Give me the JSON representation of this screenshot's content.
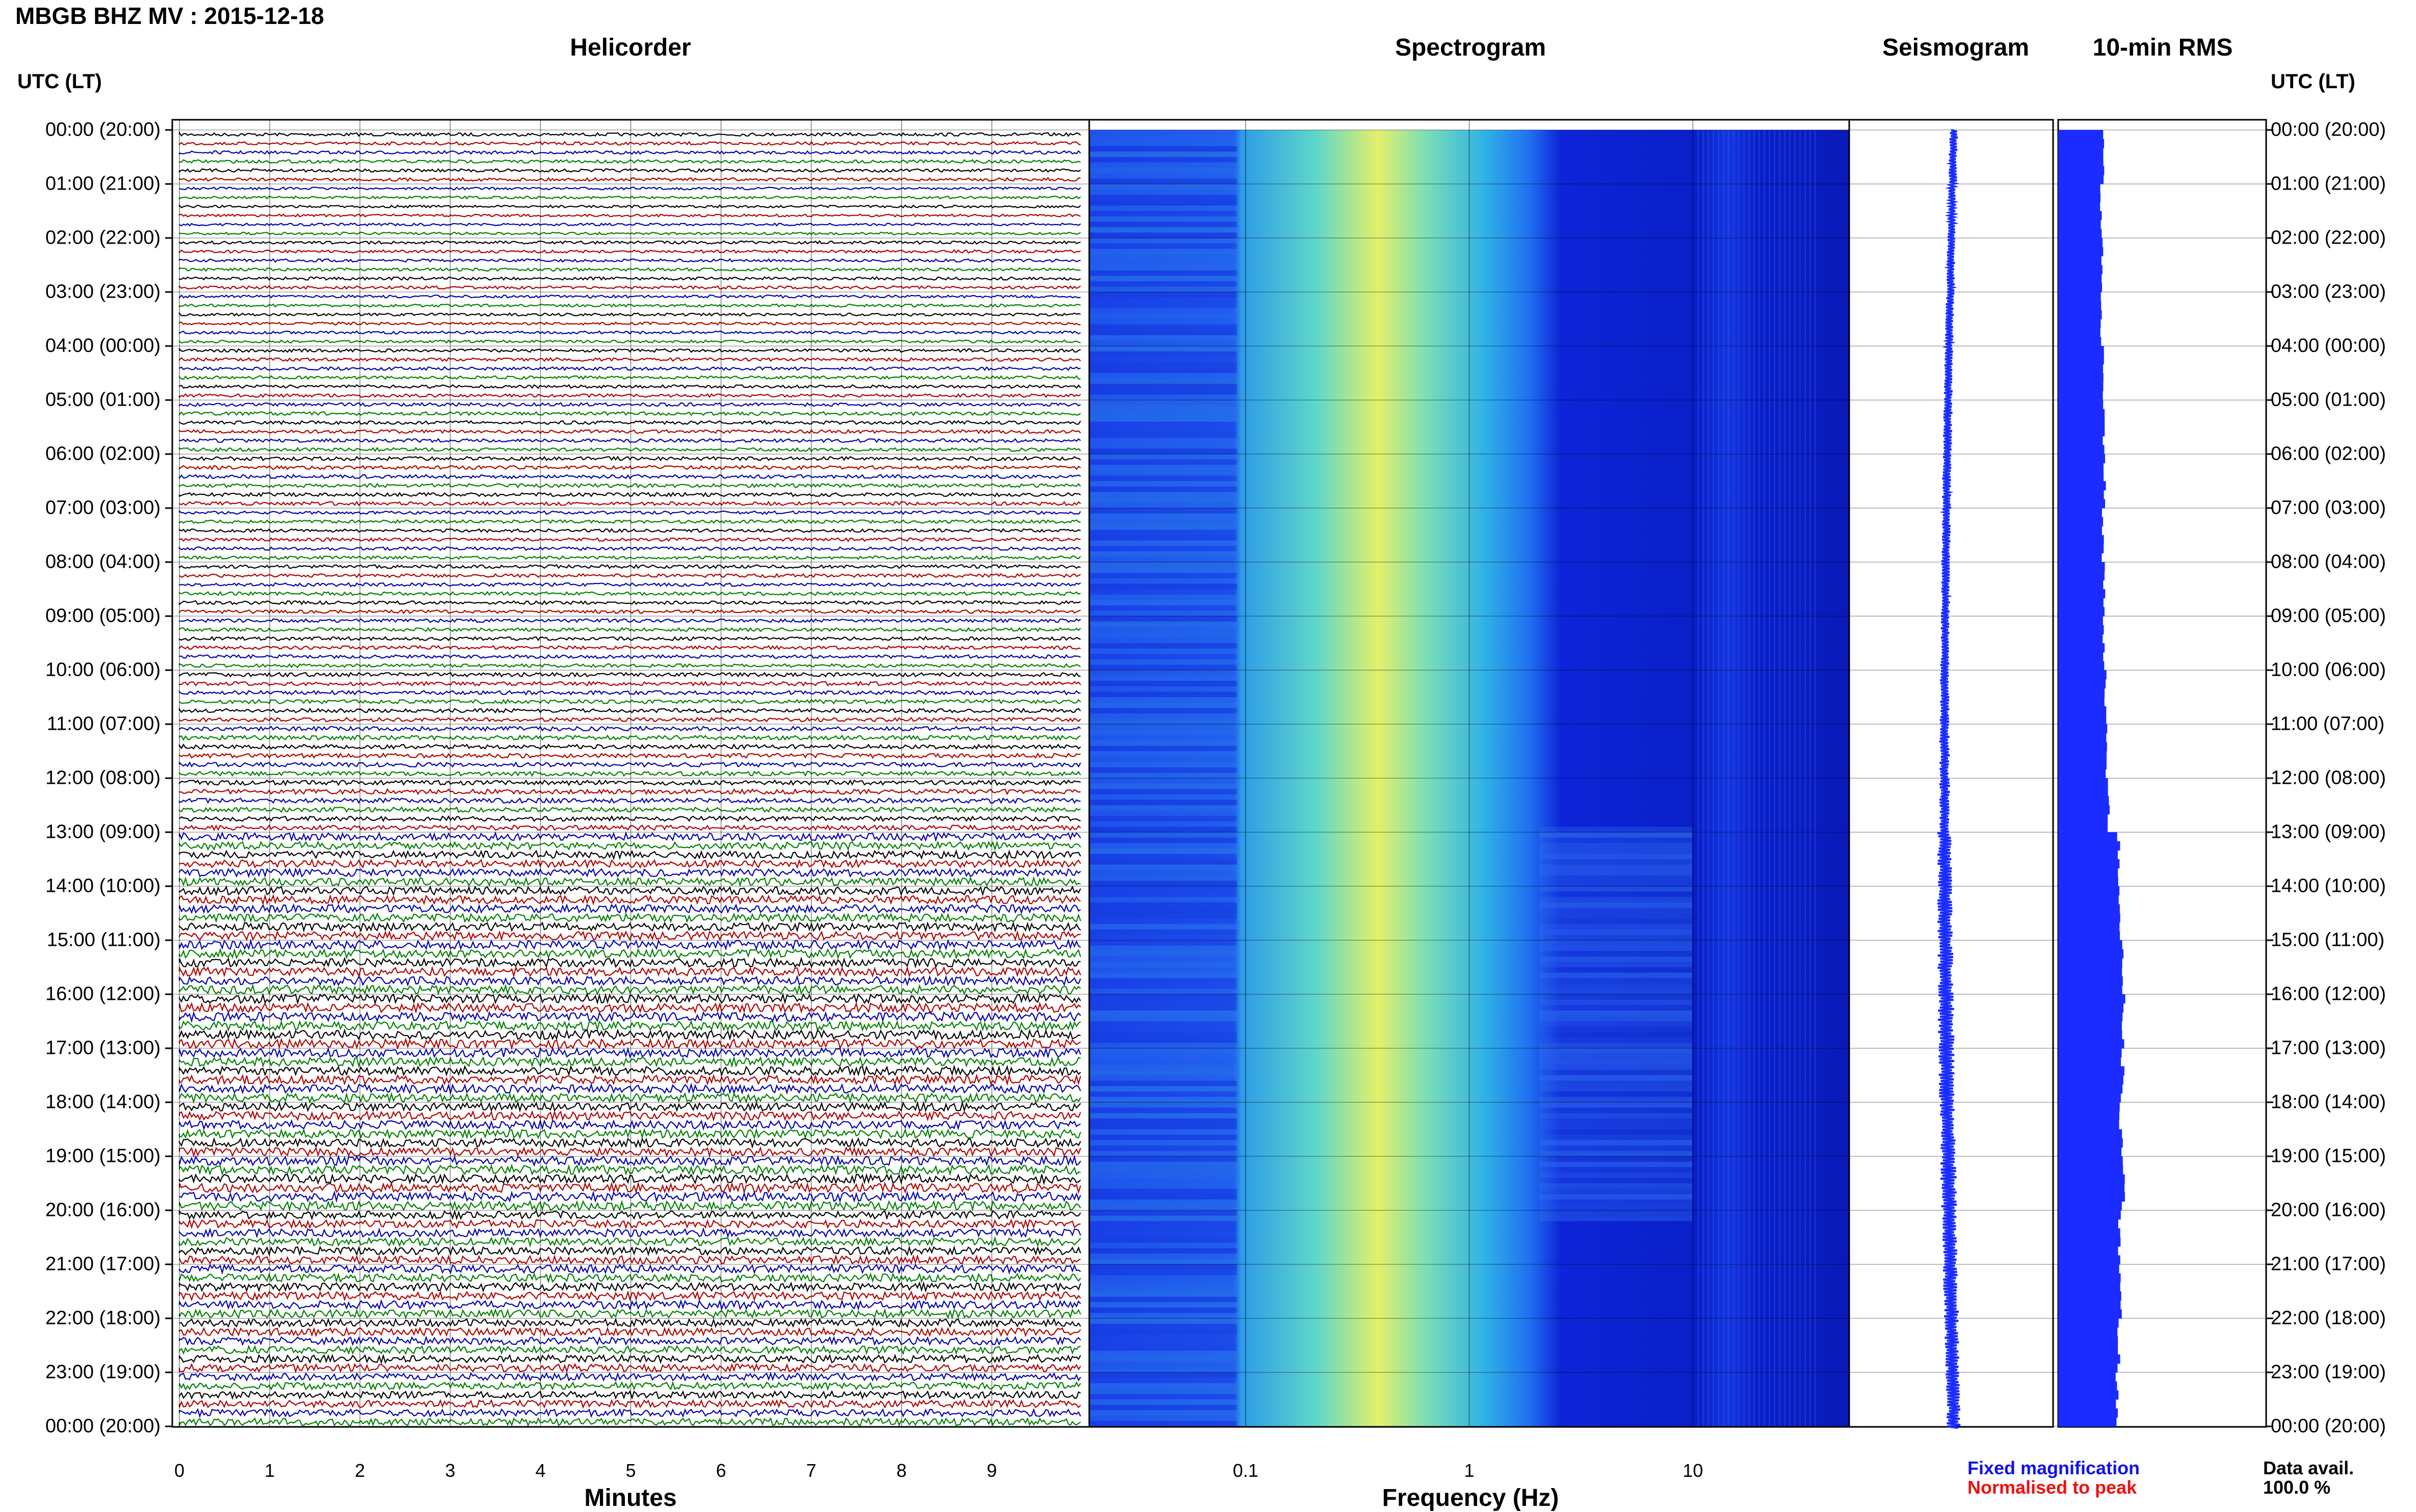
{
  "header": {
    "title": "MBGB BHZ MV : 2015-12-18"
  },
  "panels": {
    "helicorder": "Helicorder",
    "spectrogram": "Spectrogram",
    "seismogram": "Seismogram",
    "rms": "10-min RMS"
  },
  "axes": {
    "left_label": "UTC (LT)",
    "right_label": "UTC (LT)",
    "time_labels": [
      "00:00 (20:00)",
      "01:00 (21:00)",
      "02:00 (22:00)",
      "03:00 (23:00)",
      "04:00 (00:00)",
      "05:00 (01:00)",
      "06:00 (02:00)",
      "07:00 (03:00)",
      "08:00 (04:00)",
      "09:00 (05:00)",
      "10:00 (06:00)",
      "11:00 (07:00)",
      "12:00 (08:00)",
      "13:00 (09:00)",
      "14:00 (10:00)",
      "15:00 (11:00)",
      "16:00 (12:00)",
      "17:00 (13:00)",
      "18:00 (14:00)",
      "19:00 (15:00)",
      "20:00 (16:00)",
      "21:00 (17:00)",
      "22:00 (18:00)",
      "23:00 (19:00)",
      "00:00 (20:00)"
    ],
    "minutes_ticks": [
      "0",
      "1",
      "2",
      "3",
      "4",
      "5",
      "6",
      "7",
      "8",
      "9"
    ],
    "minutes_label": "Minutes",
    "freq_ticks": [
      "0.1",
      "1",
      "10"
    ],
    "freq_label": "Frequency (Hz)"
  },
  "legend": {
    "fixed": "Fixed magnification",
    "normalised": "Normalised to peak",
    "fixed_color": "#1010ee",
    "normalised_color": "#ee1010"
  },
  "data_avail": {
    "label": "Data avail.",
    "value": "100.0 %"
  },
  "colors": {
    "trace_cycle": [
      "#000000",
      "#b00000",
      "#0000b0",
      "#008000"
    ],
    "seismogram": "#1a2cff",
    "rms": "#1a2cff"
  },
  "chart_data": [
    {
      "type": "line",
      "title": "Helicorder",
      "xlabel": "Minutes",
      "ylabel": "UTC (LT)",
      "xlim": [
        0,
        10
      ],
      "rows_per_hour": 6,
      "hours": 24,
      "amplitude_trend": "low quiet noise 00:00-12:00, increasing amplitude from ~13:00 to 24:00"
    },
    {
      "type": "heatmap",
      "title": "Spectrogram",
      "xlabel": "Frequency (Hz)",
      "x_scale": "log",
      "xlim": [
        0.02,
        50
      ],
      "colormap": "blue-cyan-yellow",
      "peak_frequency_hz": 0.3,
      "notes": "microseism peak near 0.2-0.5 Hz; broadband energy 2-10 Hz increases from 13:00 to 20:00"
    },
    {
      "type": "line",
      "title": "Seismogram",
      "normalisation": "Normalised to peak"
    },
    {
      "type": "bar",
      "title": "10-min RMS",
      "orientation": "horizontal",
      "hour_values_relative": [
        0.55,
        0.52,
        0.54,
        0.53,
        0.55,
        0.56,
        0.57,
        0.55,
        0.56,
        0.56,
        0.58,
        0.6,
        0.62,
        0.74,
        0.76,
        0.78,
        0.8,
        0.79,
        0.77,
        0.8,
        0.75,
        0.76,
        0.74,
        0.72
      ]
    }
  ]
}
